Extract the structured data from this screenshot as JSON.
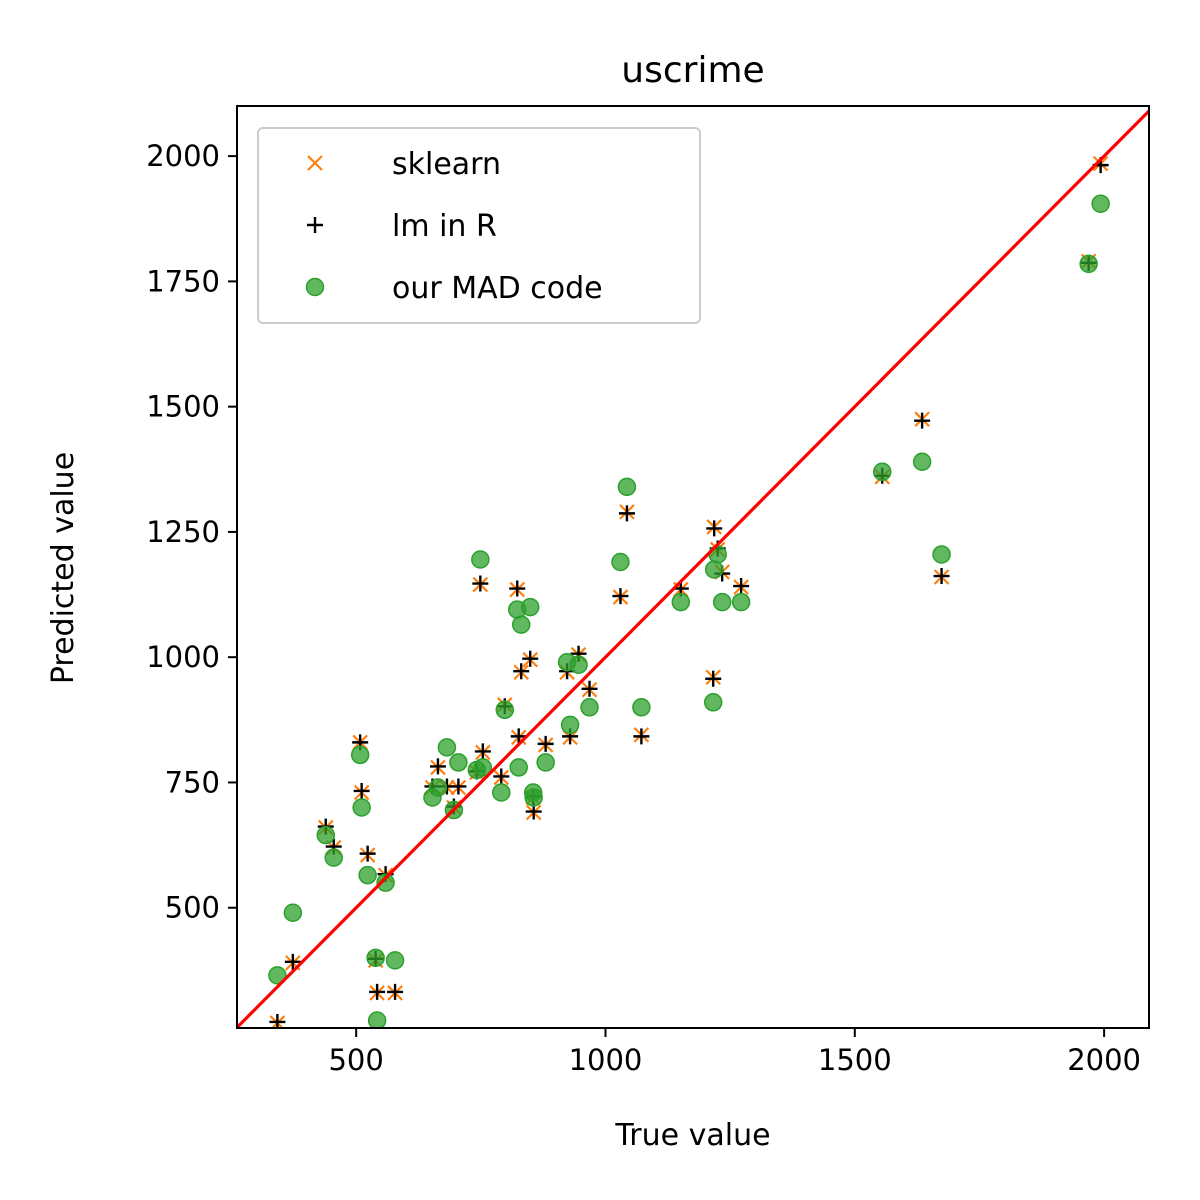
{
  "chart_data": {
    "type": "scatter",
    "title": "uscrime",
    "xlabel": "True value",
    "ylabel": "Predicted value",
    "xlim": [
      261,
      2090
    ],
    "ylim": [
      260,
      2100
    ],
    "xticks": [
      500,
      1000,
      1500,
      2000
    ],
    "yticks": [
      500,
      750,
      1000,
      1250,
      1500,
      1750,
      2000
    ],
    "grid": false,
    "legend_position": "top-left",
    "identity_line": {
      "color": "#ff0000"
    },
    "x": [
      342,
      373,
      439,
      455,
      508,
      511,
      523,
      539,
      542,
      559,
      578,
      653,
      664,
      682,
      696,
      705,
      742,
      749,
      754,
      791,
      798,
      823,
      826,
      831,
      849,
      855,
      856,
      880,
      923,
      929,
      946,
      968,
      1030,
      1043,
      1072,
      1151,
      1216,
      1218,
      1225,
      1234,
      1272,
      1555,
      1635,
      1674,
      1969,
      1993
    ],
    "series": [
      {
        "name": "sklearn",
        "marker": "x",
        "color": "#ff7f0e",
        "values": [
          270,
          390,
          660,
          620,
          830,
          730,
          605,
          395,
          330,
          565,
          330,
          740,
          780,
          740,
          700,
          740,
          770,
          1145,
          810,
          760,
          905,
          1135,
          840,
          970,
          995,
          720,
          690,
          825,
          970,
          840,
          1005,
          935,
          1120,
          1290,
          845,
          1135,
          960,
          1260,
          1215,
          1170,
          1140,
          1360,
          1475,
          1160,
          1790,
          1985
        ]
      },
      {
        "name": "lm in R",
        "marker": "+",
        "color": "#000000",
        "values": [
          272,
          392,
          662,
          622,
          830,
          733,
          608,
          398,
          332,
          567,
          332,
          742,
          782,
          742,
          702,
          742,
          772,
          1147,
          812,
          762,
          902,
          1137,
          842,
          972,
          997,
          722,
          692,
          827,
          972,
          842,
          1007,
          937,
          1122,
          1287,
          842,
          1137,
          957,
          1257,
          1217,
          1167,
          1142,
          1362,
          1472,
          1162,
          1787,
          1982
        ]
      },
      {
        "name": "our MAD code",
        "marker": "o",
        "color": "#2ca02c",
        "values": [
          365,
          490,
          645,
          600,
          805,
          700,
          565,
          400,
          275,
          550,
          395,
          720,
          740,
          820,
          695,
          790,
          775,
          1195,
          780,
          730,
          895,
          1095,
          780,
          1065,
          1100,
          730,
          720,
          790,
          990,
          865,
          985,
          900,
          1190,
          1340,
          900,
          1110,
          910,
          1175,
          1205,
          1110,
          1110,
          1370,
          1390,
          1205,
          1785,
          1905
        ]
      }
    ]
  }
}
